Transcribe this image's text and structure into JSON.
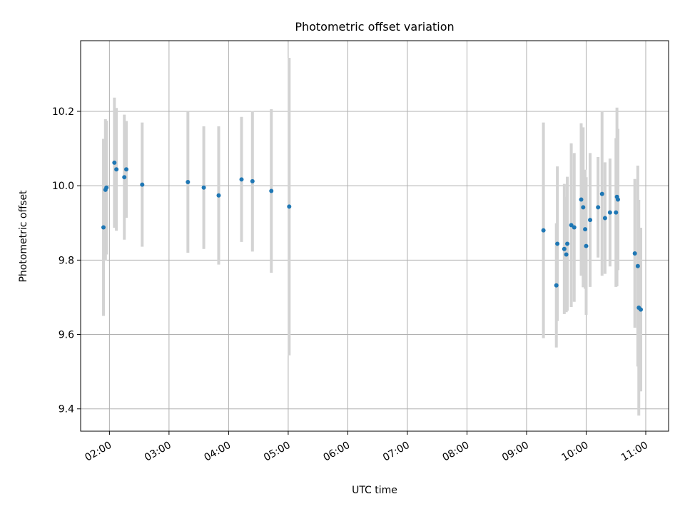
{
  "chart_data": {
    "type": "scatter",
    "title": "Photometric offset variation",
    "xlabel": "UTC time",
    "ylabel": "Photometric offset",
    "x_ticks": [
      "02:00",
      "03:00",
      "04:00",
      "05:00",
      "06:00",
      "07:00",
      "08:00",
      "09:00",
      "10:00",
      "11:00"
    ],
    "y_ticks": [
      "9.4",
      "9.6",
      "9.8",
      "10.0",
      "10.2"
    ],
    "xlim": [
      "01:31",
      "11:23"
    ],
    "ylim": [
      9.34,
      10.39
    ],
    "grid": true,
    "legend": "none",
    "colors": {
      "point": "#1f77b4",
      "errorbar": "#d3d3d3"
    },
    "points": [
      {
        "x": "01:54",
        "y": 9.888,
        "err": 0.238
      },
      {
        "x": "01:56",
        "y": 9.989,
        "err": 0.19
      },
      {
        "x": "01:57",
        "y": 9.995,
        "err": 0.18
      },
      {
        "x": "02:05",
        "y": 10.062,
        "err": 0.175
      },
      {
        "x": "02:07",
        "y": 10.044,
        "err": 0.165
      },
      {
        "x": "02:15",
        "y": 10.023,
        "err": 0.168
      },
      {
        "x": "02:17",
        "y": 10.044,
        "err": 0.13
      },
      {
        "x": "02:33",
        "y": 10.003,
        "err": 0.167
      },
      {
        "x": "03:19",
        "y": 10.01,
        "err": 0.19
      },
      {
        "x": "03:35",
        "y": 9.995,
        "err": 0.165
      },
      {
        "x": "03:50",
        "y": 9.974,
        "err": 0.186
      },
      {
        "x": "04:13",
        "y": 10.017,
        "err": 0.168
      },
      {
        "x": "04:24",
        "y": 10.012,
        "err": 0.189
      },
      {
        "x": "04:43",
        "y": 9.986,
        "err": 0.22
      },
      {
        "x": "05:01",
        "y": 9.944,
        "err": 0.4
      },
      {
        "x": "09:17",
        "y": 9.88,
        "err": 0.29
      },
      {
        "x": "09:30",
        "y": 9.732,
        "err": 0.167
      },
      {
        "x": "09:31",
        "y": 9.844,
        "err": 0.208
      },
      {
        "x": "09:38",
        "y": 9.83,
        "err": 0.175
      },
      {
        "x": "09:40",
        "y": 9.815,
        "err": 0.155
      },
      {
        "x": "09:41",
        "y": 9.844,
        "err": 0.18
      },
      {
        "x": "09:45",
        "y": 9.894,
        "err": 0.22
      },
      {
        "x": "09:48",
        "y": 9.888,
        "err": 0.2
      },
      {
        "x": "09:55",
        "y": 9.963,
        "err": 0.205
      },
      {
        "x": "09:57",
        "y": 9.942,
        "err": 0.215
      },
      {
        "x": "09:59",
        "y": 9.883,
        "err": 0.16
      },
      {
        "x": "10:00",
        "y": 9.838,
        "err": 0.185
      },
      {
        "x": "10:04",
        "y": 9.908,
        "err": 0.18
      },
      {
        "x": "10:12",
        "y": 9.942,
        "err": 0.135
      },
      {
        "x": "10:16",
        "y": 9.978,
        "err": 0.22
      },
      {
        "x": "10:19",
        "y": 9.913,
        "err": 0.15
      },
      {
        "x": "10:24",
        "y": 9.928,
        "err": 0.145
      },
      {
        "x": "10:30",
        "y": 9.928,
        "err": 0.2
      },
      {
        "x": "10:31",
        "y": 9.97,
        "err": 0.24
      },
      {
        "x": "10:32",
        "y": 9.963,
        "err": 0.19
      },
      {
        "x": "10:49",
        "y": 9.818,
        "err": 0.2
      },
      {
        "x": "10:52",
        "y": 9.784,
        "err": 0.27
      },
      {
        "x": "10:53",
        "y": 9.672,
        "err": 0.29
      },
      {
        "x": "10:55",
        "y": 9.667,
        "err": 0.22
      }
    ]
  }
}
